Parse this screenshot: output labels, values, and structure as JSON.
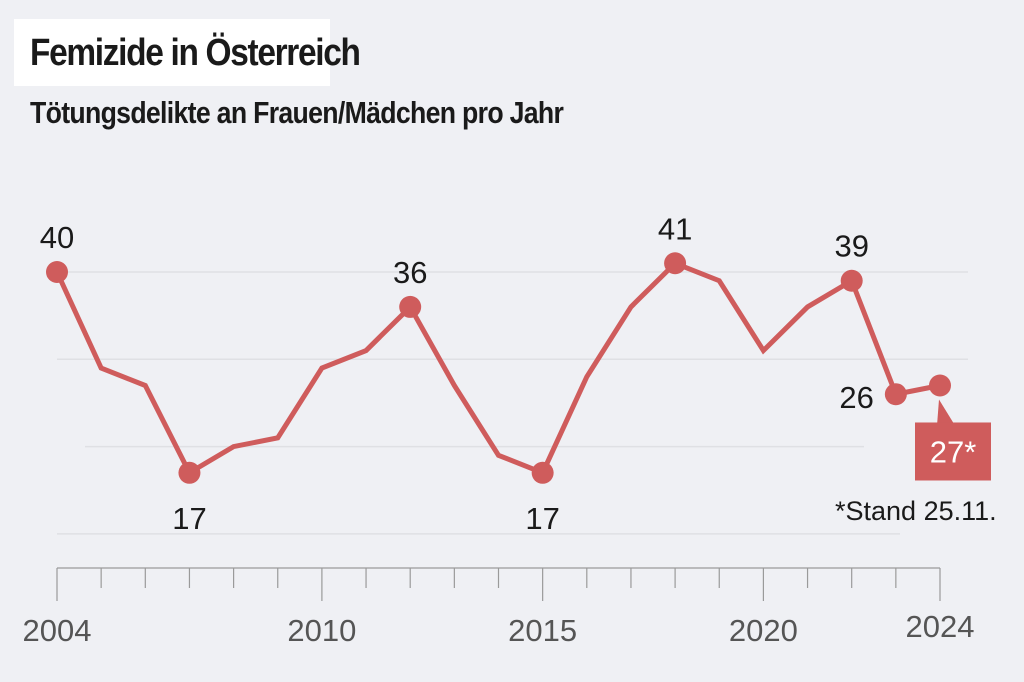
{
  "title": "Femizide in Österreich",
  "subtitle": "Tötungsdelikte an Frauen/Mädchen pro Jahr",
  "note": "*Stand 25.11.",
  "colors": {
    "line": "#cf5c5c",
    "background": "#eff0f4",
    "text": "#1a1a1a",
    "axis_text": "#555555"
  },
  "chart_data": {
    "type": "line",
    "title": "Femizide in Österreich",
    "subtitle": "Tötungsdelikte an Frauen/Mädchen pro Jahr",
    "xlabel": "",
    "ylabel": "",
    "x": [
      2004,
      2005,
      2006,
      2007,
      2008,
      2009,
      2010,
      2011,
      2012,
      2013,
      2014,
      2015,
      2016,
      2017,
      2018,
      2019,
      2020,
      2021,
      2022,
      2023,
      2024
    ],
    "series": [
      {
        "name": "Tötungsdelikte an Frauen/Mädchen",
        "values": [
          40,
          29,
          27,
          17,
          20,
          21,
          29,
          31,
          36,
          27,
          19,
          17,
          28,
          36,
          41,
          39,
          31,
          36,
          39,
          26,
          27
        ]
      }
    ],
    "xticks": [
      "2004",
      "2010",
      "2015",
      "2020",
      "2024"
    ],
    "ylim": [
      10,
      40
    ],
    "gridlines": [
      10,
      20,
      30,
      40
    ],
    "grid": true,
    "legend": "none",
    "annotations": [
      {
        "year": 2004,
        "label": "40",
        "position": "above"
      },
      {
        "year": 2007,
        "label": "17",
        "position": "below"
      },
      {
        "year": 2012,
        "label": "36",
        "position": "above"
      },
      {
        "year": 2015,
        "label": "17",
        "position": "below"
      },
      {
        "year": 2018,
        "label": "41",
        "position": "above"
      },
      {
        "year": 2022,
        "label": "39",
        "position": "above"
      },
      {
        "year": 2023,
        "label": "26",
        "position": "left"
      },
      {
        "year": 2024,
        "label": "27*",
        "position": "callout"
      }
    ],
    "footnote": "*Stand 25.11."
  }
}
